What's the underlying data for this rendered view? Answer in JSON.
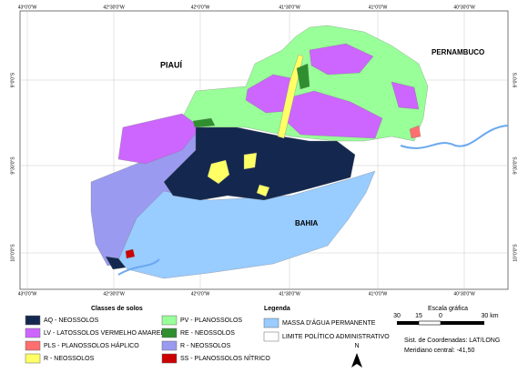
{
  "map": {
    "states": [
      "PIAUÍ",
      "PERNAMBUCO",
      "BAHIA"
    ],
    "lon_labels": [
      "43°0'0\"W",
      "42°30'0\"W",
      "42°0'0\"W",
      "41°30'0\"W",
      "41°0'0\"W",
      "40°30'0\"W"
    ],
    "lat_labels": [
      "9°0'0\"S",
      "9°30'0\"S",
      "10°0'0\"S"
    ]
  },
  "legend_soil": {
    "title": "Classes de solos",
    "items": [
      {
        "label": "AQ - NEOSSOLOS",
        "color": "#14284f"
      },
      {
        "label": "LV - LATOSSOLOS VERMELHO AMARELO",
        "color": "#cc66ff"
      },
      {
        "label": "PLS - PLANOSSOLOS HÁPLICO",
        "color": "#ff6f6f"
      },
      {
        "label": "R - NEOSSOLOS",
        "color": "#ffff66"
      },
      {
        "label": "PV - PLANOSSOLOS",
        "color": "#99ff99"
      },
      {
        "label": "RE - NEOSSOLOS",
        "color": "#2f8f2f"
      },
      {
        "label": "R - NEOSSOLOS",
        "color": "#9a9af0"
      },
      {
        "label": "SS - PLANOSSOLOS NÍTRICO",
        "color": "#cc0000"
      }
    ]
  },
  "legend_other": {
    "title": "Legenda",
    "items": [
      {
        "label": "MASSA D'ÁGUA PERMANENTE",
        "color": "#99ccff"
      },
      {
        "label": "LIMITE POLÍTICO ADMINISTRATIVO",
        "color": "#ffffff"
      }
    ]
  },
  "scale": {
    "title": "Escala gráfica",
    "labels": [
      "30",
      "15",
      "0",
      "30 km"
    ]
  },
  "coords": [
    "Sist. de Coordenadas: LAT/LONG",
    "Meridiano central: -41,50"
  ],
  "north": "N"
}
